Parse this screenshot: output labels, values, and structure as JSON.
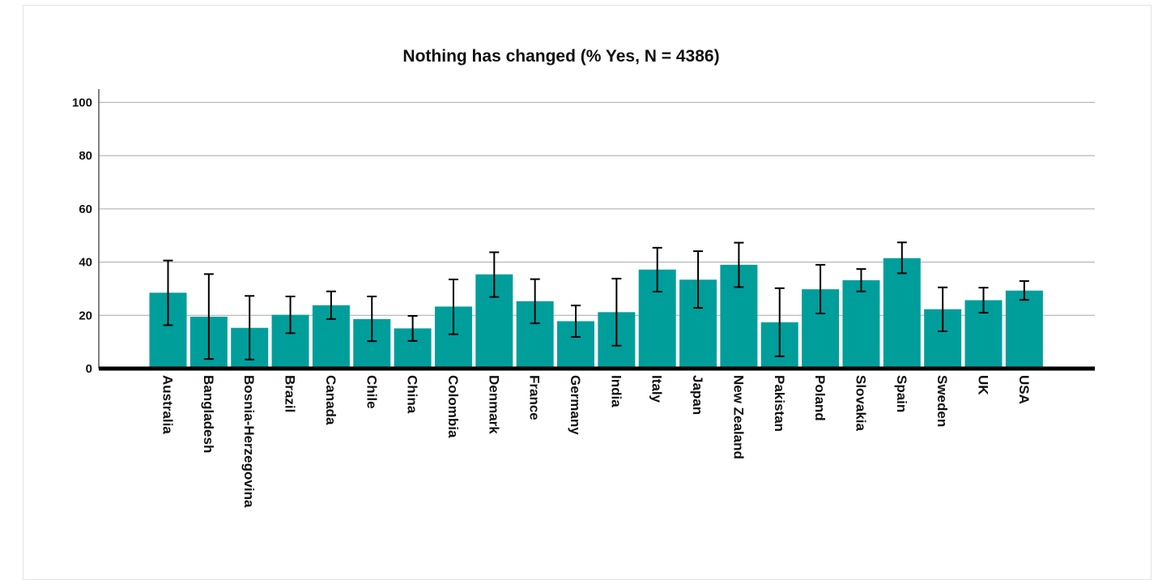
{
  "chart_data": {
    "type": "bar",
    "title": "Nothing has changed (% Yes, N = 4386)",
    "xlabel": "",
    "ylabel": "",
    "ylim": [
      0,
      105
    ],
    "yticks": [
      0,
      20,
      40,
      60,
      80,
      100
    ],
    "grid": true,
    "bar_color": "#009e9b",
    "error_bar_color": "#000000",
    "categories": [
      "Australia",
      "Bangladesh",
      "Bosnia-Herzegovina",
      "Brazil",
      "Canada",
      "Chile",
      "China",
      "Colombia",
      "Denmark",
      "France",
      "Germany",
      "India",
      "Italy",
      "Japan",
      "New Zealand",
      "Pakistan",
      "Poland",
      "Slovakia",
      "Spain",
      "Sweden",
      "UK",
      "USA"
    ],
    "values": [
      28.5,
      19.5,
      15.3,
      20.2,
      23.8,
      18.6,
      15.1,
      23.3,
      35.4,
      25.3,
      17.8,
      21.2,
      37.2,
      33.4,
      39.0,
      17.4,
      29.8,
      33.2,
      41.5,
      22.3,
      25.7,
      29.3
    ],
    "error_low": [
      16.3,
      3.6,
      3.4,
      13.3,
      18.6,
      10.3,
      10.4,
      12.9,
      26.9,
      17.0,
      11.9,
      8.6,
      28.9,
      22.8,
      30.6,
      4.6,
      20.7,
      29.0,
      35.8,
      14.0,
      21.0,
      25.8
    ],
    "error_high": [
      40.6,
      35.5,
      27.3,
      27.1,
      29.0,
      27.1,
      19.8,
      33.5,
      43.7,
      33.6,
      23.7,
      33.8,
      45.4,
      44.1,
      47.3,
      30.2,
      39.0,
      37.4,
      47.4,
      30.5,
      30.4,
      32.9
    ]
  }
}
